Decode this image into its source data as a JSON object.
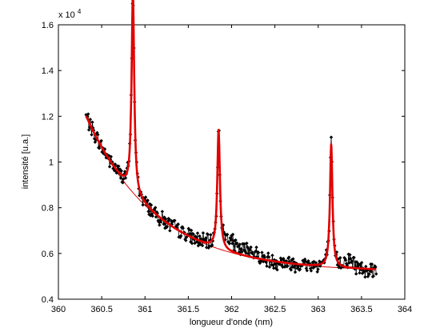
{
  "chart_data": {
    "type": "line",
    "title": "",
    "xlabel": "longueur d'onde (nm)",
    "ylabel": "intensité [u.a.]",
    "exponent_label": {
      "base": "x 10",
      "power": "4"
    },
    "xlim": [
      360,
      364
    ],
    "ylim": [
      0.4,
      1.6
    ],
    "y_scale_factor": 10000,
    "grid": false,
    "x_ticks": [
      {
        "value": 360,
        "label": "360"
      },
      {
        "value": 360.5,
        "label": "360.5"
      },
      {
        "value": 361,
        "label": "361"
      },
      {
        "value": 361.5,
        "label": "361.5"
      },
      {
        "value": 362,
        "label": "362"
      },
      {
        "value": 362.5,
        "label": "362.5"
      },
      {
        "value": 363,
        "label": "363"
      },
      {
        "value": 363.5,
        "label": "363.5"
      },
      {
        "value": 364,
        "label": "364"
      }
    ],
    "y_ticks": [
      {
        "value": 0.4,
        "label": "0.4"
      },
      {
        "value": 0.6,
        "label": "0.6"
      },
      {
        "value": 0.8,
        "label": "0.8"
      },
      {
        "value": 1.0,
        "label": "1"
      },
      {
        "value": 1.2,
        "label": "1.2"
      },
      {
        "value": 1.4,
        "label": "1.4"
      },
      {
        "value": 1.6,
        "label": "1.6"
      }
    ],
    "series": [
      {
        "role": "measured",
        "color": "#000000",
        "marker": "diamond",
        "x_start": 360.32,
        "x_end": 363.67,
        "points": 420,
        "baseline": {
          "a": 0.52,
          "b": 0.68,
          "k": 1.25,
          "x0": 360.32
        },
        "peaks": [
          {
            "center": 360.86,
            "height": 0.88,
            "width": 0.018
          },
          {
            "center": 361.85,
            "height": 0.52,
            "width": 0.018
          },
          {
            "center": 363.15,
            "height": 0.54,
            "width": 0.017
          }
        ],
        "bumps": [
          {
            "center": 361.97,
            "amp": 0.05,
            "width": 0.08
          },
          {
            "center": 362.2,
            "amp": 0.03,
            "width": 0.12
          },
          {
            "center": 363.35,
            "amp": 0.035,
            "width": 0.08
          }
        ],
        "noise": 0.04,
        "seed": 7
      },
      {
        "role": "baseline-fit",
        "color": "#e00000",
        "line_width": 1
      },
      {
        "role": "peak-fit",
        "color": "#e00000",
        "line_width": 2.6
      }
    ]
  }
}
